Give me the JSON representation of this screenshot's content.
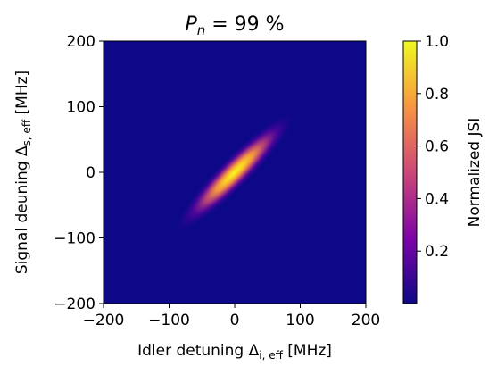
{
  "chart_data": {
    "type": "heatmap",
    "title": {
      "var": "P",
      "sub": "n",
      "rest": " = 99 %"
    },
    "xlabel": {
      "pre": "Idler detuning Δ",
      "sub": "i, eff",
      "post": " [MHz]"
    },
    "ylabel": {
      "pre": "Signal deuning Δ",
      "sub": "s, eff",
      "post": " [MHz]"
    },
    "xlim": [
      -200,
      200
    ],
    "ylim": [
      -200,
      200
    ],
    "xticks": [
      -200,
      -100,
      0,
      100,
      200
    ],
    "yticks": [
      -200,
      -100,
      0,
      100,
      200
    ],
    "xtick_labels": [
      "−200",
      "−100",
      "0",
      "100",
      "200"
    ],
    "ytick_labels": [
      "−200",
      "−100",
      "0",
      "100",
      "200"
    ],
    "colormap": "plasma",
    "colorbar": {
      "label": "Normalized JSI",
      "range": [
        0.0,
        1.0
      ],
      "ticks": [
        0.2,
        0.4,
        0.6,
        0.8,
        1.0
      ],
      "tick_labels": [
        "0.2",
        "0.4",
        "0.6",
        "0.8",
        "1.0"
      ]
    },
    "distribution": {
      "shape": "elongated gaussian along diagonal",
      "center": [
        0,
        0
      ],
      "angle_deg": 45,
      "major_sigma_mhz": 42,
      "minor_sigma_mhz": 8,
      "peak_value": 1.0
    },
    "grid": false
  }
}
